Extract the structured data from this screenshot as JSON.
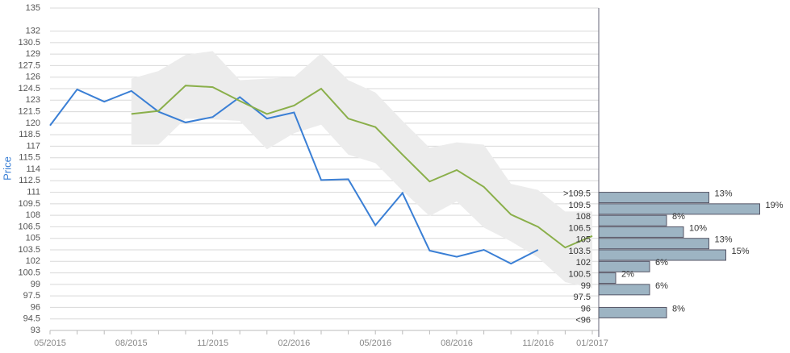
{
  "chart_data": [
    {
      "type": "line",
      "y_label": "Price",
      "categories": [
        "05/2015",
        null,
        null,
        "08/2015",
        null,
        null,
        "11/2015",
        null,
        null,
        "02/2016",
        null,
        null,
        "05/2016",
        null,
        null,
        "08/2016",
        null,
        null,
        "11/2016",
        null,
        "01/2017"
      ],
      "series": [
        {
          "color": "#3a7fd5",
          "values": [
            119.7,
            124.4,
            122.8,
            124.2,
            121.5,
            120.1,
            120.8,
            123.4,
            120.6,
            121.4,
            112.6,
            112.7,
            106.7,
            110.9,
            103.4,
            102.6,
            103.5,
            101.7,
            103.5,
            null,
            null
          ]
        },
        {
          "color": "#8aaf4a",
          "values": [
            null,
            null,
            null,
            121.2,
            121.6,
            124.9,
            124.7,
            122.9,
            121.2,
            122.3,
            124.5,
            120.6,
            119.5,
            115.9,
            112.4,
            113.9,
            111.7,
            108.1,
            106.5,
            103.8,
            105.3
          ]
        }
      ],
      "band": {
        "color": "#ececec",
        "upper": [
          null,
          null,
          null,
          125.8,
          126.8,
          128.9,
          129.4,
          125.6,
          125.8,
          126.0,
          129.1,
          125.6,
          124.0,
          120.3,
          116.8,
          117.5,
          117.2,
          112.1,
          111.3,
          108.5,
          108.5
        ],
        "lower": [
          null,
          null,
          null,
          117.2,
          117.2,
          120.6,
          120.5,
          120.3,
          116.6,
          118.7,
          119.8,
          115.9,
          114.8,
          111.2,
          107.9,
          109.8,
          106.4,
          104.6,
          102.5,
          99.3,
          98.5
        ]
      },
      "ylim": [
        93,
        135
      ],
      "yticks": [
        93,
        94.5,
        96,
        97.5,
        99,
        100.5,
        102,
        103.5,
        105,
        106.5,
        108,
        109.5,
        111,
        112.5,
        114,
        115.5,
        117,
        118.5,
        120,
        121.5,
        123,
        124.5,
        126,
        127.5,
        129,
        130.5,
        132,
        135
      ],
      "grid": true
    },
    {
      "type": "hbar",
      "categories": [
        ">109.5",
        "109.5",
        "108",
        "106.5",
        "105",
        "103.5",
        "102",
        "100.5",
        "99",
        "97.5",
        "96",
        "<96"
      ],
      "values": [
        13,
        19,
        8,
        10,
        13,
        15,
        6,
        2,
        6,
        null,
        8,
        null
      ],
      "value_labels": [
        "13%",
        "19%",
        "8%",
        "10%",
        "13%",
        "15%",
        "6%",
        "2%",
        "6%",
        null,
        "8%",
        null
      ],
      "color": "#9db4c3"
    }
  ]
}
